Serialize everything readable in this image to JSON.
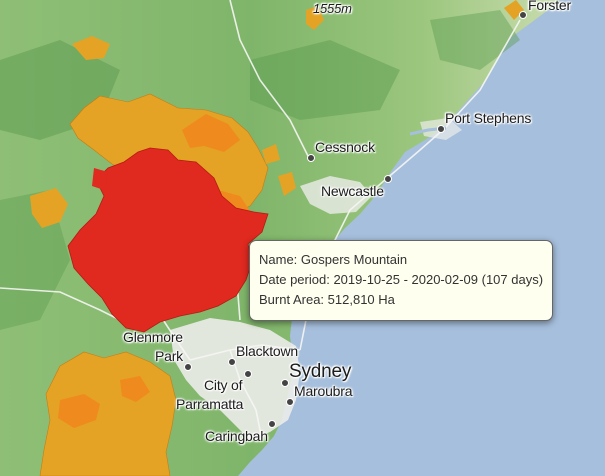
{
  "places": [
    {
      "id": "forster",
      "name": "Forster"
    },
    {
      "id": "peak",
      "name": "1555m"
    },
    {
      "id": "port-stephens",
      "name": "Port Stephens"
    },
    {
      "id": "cessnock",
      "name": "Cessnock"
    },
    {
      "id": "newcastle",
      "name": "Newcastle"
    },
    {
      "id": "glenmore",
      "name": "Glenmore"
    },
    {
      "id": "park",
      "name": "Park"
    },
    {
      "id": "blacktown",
      "name": "Blacktown"
    },
    {
      "id": "sydney",
      "name": "Sydney"
    },
    {
      "id": "city-of",
      "name": "City of"
    },
    {
      "id": "parramatta",
      "name": "Parramatta"
    },
    {
      "id": "maroubra",
      "name": "Maroubra"
    },
    {
      "id": "caringbah",
      "name": "Caringbah"
    }
  ],
  "tooltip": {
    "name_label": "Name:",
    "name": "Gospers Mountain",
    "period_label": "Date period:",
    "period": "2019-10-25 - 2020-02-09 (107 days)",
    "area_label": "Burnt Area:",
    "area": "512,810 Ha"
  },
  "colors": {
    "sea": "#a6bfdc",
    "land_green": "#7db56b",
    "fire_red": "#e0291f",
    "fire_orange": "#ef8a1e",
    "fire_amber": "#e4a324",
    "urban": "#e8e8e6"
  }
}
